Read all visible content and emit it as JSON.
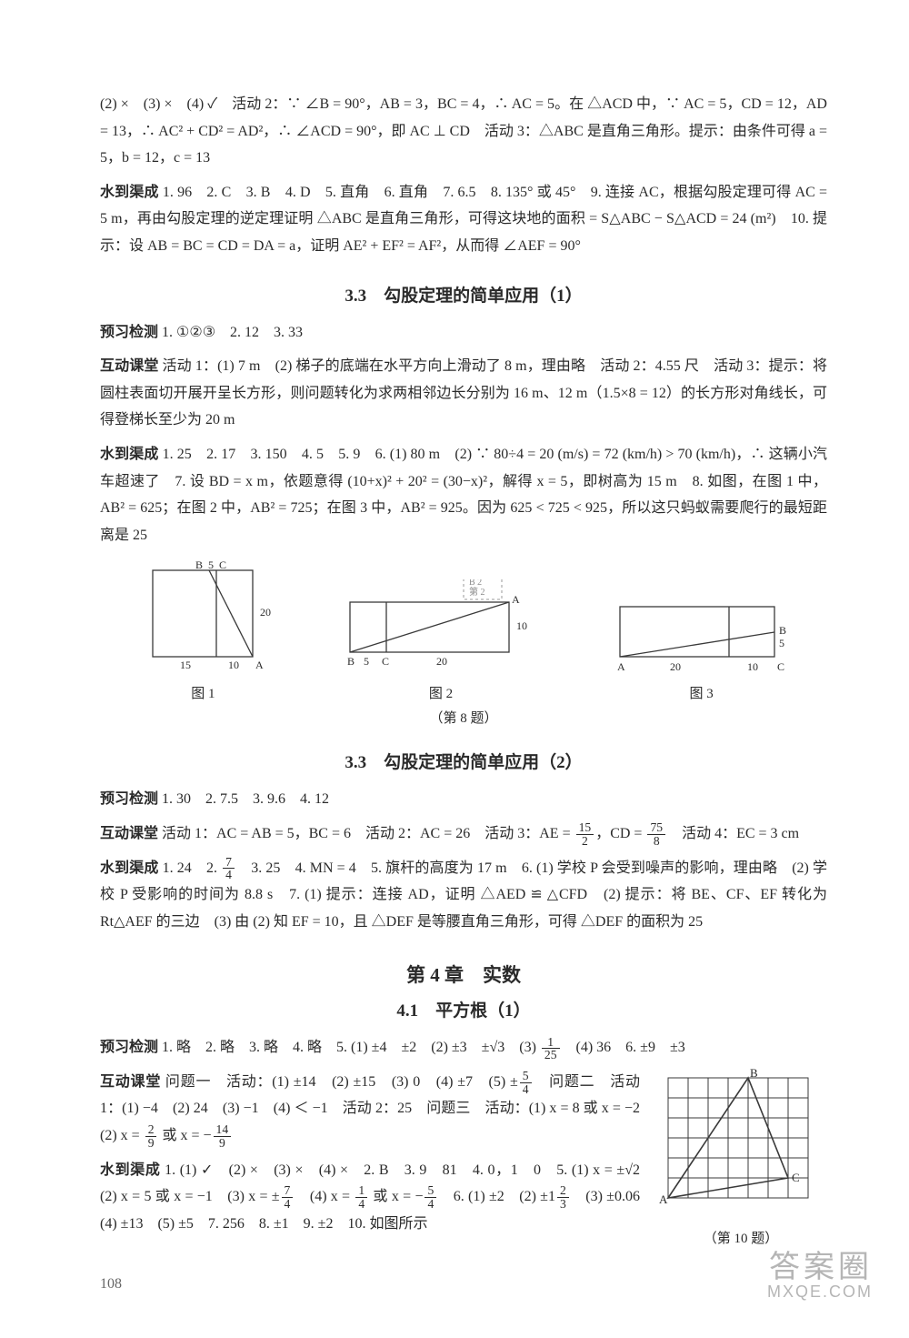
{
  "colors": {
    "page_bg": "#ffffff",
    "text": "#2a2a2a",
    "line": "#3a3a3a",
    "pagenum": "#666666",
    "watermark": "rgba(120,120,120,0.55)",
    "ghost": "rgba(150,150,150,0.25)"
  },
  "typography": {
    "body_font": "SimSun / Songti",
    "body_size_pt": 12,
    "title_size_pt": 14,
    "chapter_size_pt": 16,
    "line_height": 1.85
  },
  "page_number": "108",
  "ghost_label": "",
  "watermark": {
    "line1": "答案圈",
    "line2": "MXQE.COM"
  },
  "top_continuation": "(2) ×　(3) ×　(4) ✓　活动 2：∵ ∠B = 90°，AB = 3，BC = 4，∴ AC = 5。在 △ACD 中，∵ AC = 5，CD = 12，AD = 13，∴ AC² + CD² = AD²，∴ ∠ACD = 90°，即 AC ⊥ CD　活动 3：△ABC 是直角三角形。提示：由条件可得 a = 5，b = 12，c = 13",
  "top_shuidao_label": "水到渠成",
  "top_shuidao": "1. 96　2. C　3. B　4. D　5. 直角　6. 直角　7. 6.5　8. 135° 或 45°　9. 连接 AC，根据勾股定理可得 AC = 5 m，再由勾股定理的逆定理证明 △ABC 是直角三角形，可得这块地的面积 = S△ABC − S△ACD = 24 (m²)　10. 提示：设 AB = BC = CD = DA = a，证明 AE² + EF² = AF²，从而得 ∠AEF = 90°",
  "sec_33_1": {
    "title": "3.3　勾股定理的简单应用（1）",
    "yuxi_label": "预习检测",
    "yuxi": "1. ①②③　2. 12　3. 33",
    "hudong_label": "互动课堂",
    "hudong": "活动 1：(1) 7 m　(2) 梯子的底端在水平方向上滑动了 8 m，理由略　活动 2：4.55 尺　活动 3：提示：将圆柱表面切开展开呈长方形，则问题转化为求两相邻边长分别为 16 m、12 m（1.5×8 = 12）的长方形对角线长，可得登梯长至少为 20 m",
    "shuidao_label": "水到渠成",
    "shuidao": "1. 25　2. 17　3. 150　4. 5　5. 9　6. (1) 80 m　(2) ∵ 80÷4 = 20 (m/s) = 72 (km/h) > 70 (km/h)，∴ 这辆小汽车超速了　7. 设 BD = x m，依题意得 (10+x)² + 20² = (30−x)²，解得 x = 5，即树高为 15 m　8. 如图，在图 1 中，AB² = 625；在图 2 中，AB² = 725；在图 3 中，AB² = 925。因为 625 < 725 < 925，所以这只蚂蚁需要爬行的最短距离是 25"
  },
  "diagram_q8": {
    "caption": "（第 8 题）",
    "fig1": {
      "label": "图 1",
      "points": {
        "A": "A",
        "B": "B",
        "C": "C"
      },
      "dims": {
        "w1": "15",
        "w2": "10",
        "h": "20",
        "top_gap": "5"
      }
    },
    "fig2": {
      "label": "图 2",
      "points": {
        "A": "A",
        "B": "B",
        "C": "C"
      },
      "dims": {
        "w1": "5",
        "w2": "20",
        "h": "10"
      }
    },
    "fig3": {
      "label": "图 3",
      "points": {
        "A": "A",
        "B": "B",
        "C": "C"
      },
      "dims": {
        "w1": "20",
        "w2": "10",
        "h": "5"
      }
    },
    "side_box": {
      "line1": "B 2",
      "line2": "第 2"
    }
  },
  "sec_33_2": {
    "title": "3.3　勾股定理的简单应用（2）",
    "yuxi_label": "预习检测",
    "yuxi": "1. 30　2. 7.5　3. 9.6　4. 12",
    "hudong_label": "互动课堂",
    "hudong_html": "活动 1：AC = AB = 5，BC = 6　活动 2：AC = 26　活动 3：AE = <span class='frac'><span class='n'>15</span><span class='d'>2</span></span>，CD = <span class='frac'><span class='n'>75</span><span class='d'>8</span></span>　活动 4：EC = 3 cm",
    "shuidao_label": "水到渠成",
    "shuidao_html": "1. 24　2. <span class='frac'><span class='n'>7</span><span class='d'>4</span></span>　3. 25　4. MN = 4　5. 旗杆的高度为 17 m　6. (1) 学校 P 会受到噪声的影响，理由略　(2) 学校 P 受影响的时间为 8.8 s　7. (1) 提示：连接 AD，证明 △AED ≌ △CFD　(2) 提示：将 BE、CF、EF 转化为 Rt△AEF 的三边　(3) 由 (2) 知 EF = 10，且 △DEF 是等腰直角三角形，可得 △DEF 的面积为 25"
  },
  "chapter4": {
    "chapter_title": "第 4 章　实数",
    "sec_41_title": "4.1　平方根（1）",
    "yuxi_label": "预习检测",
    "yuxi_html": "1. 略　2. 略　3. 略　4. 略　5. (1) ±4　±2　(2) ±3　±√3　(3) <span class='frac'><span class='n'>1</span><span class='d'>25</span></span>　(4) 36　6. ±9　±3",
    "hudong_label": "互动课堂",
    "hudong_html": "问题一　活动：(1) ±14　(2) ±15　(3) 0　(4) ±7　(5) ±<span class='frac'><span class='n'>5</span><span class='d'>4</span></span>　问题二　活动 1：(1) −4　(2) 24　(3) −1　(4) ＜ −1　活动 2：25　问题三　活动：(1) x = 8 或 x = −2　(2) x = <span class='frac'><span class='n'>2</span><span class='d'>9</span></span> 或 x = −<span class='frac'><span class='n'>14</span><span class='d'>9</span></span>",
    "shuidao_label": "水到渠成",
    "shuidao_html": "1. (1) ✓　(2) ×　(3) ×　(4) ×　2. B　3. 9　81　4. 0，1　0　5. (1) x = ±√2　(2) x = 5 或 x = −1　(3) x = ±<span class='frac'><span class='n'>7</span><span class='d'>4</span></span>　(4) x = <span class='frac'><span class='n'>1</span><span class='d'>4</span></span> 或 x = −<span class='frac'><span class='n'>5</span><span class='d'>4</span></span>　6. (1) ±2　(2) ±1<span class='frac'><span class='n'>2</span><span class='d'>3</span></span>　(3) ±0.06　(4) ±13　(5) ±5　7. 256　8. ±1　9. ±2　10. 如图所示",
    "fig10_caption": "（第 10 题）",
    "fig10_points": {
      "A": "A",
      "B": "B",
      "C": "C"
    }
  }
}
